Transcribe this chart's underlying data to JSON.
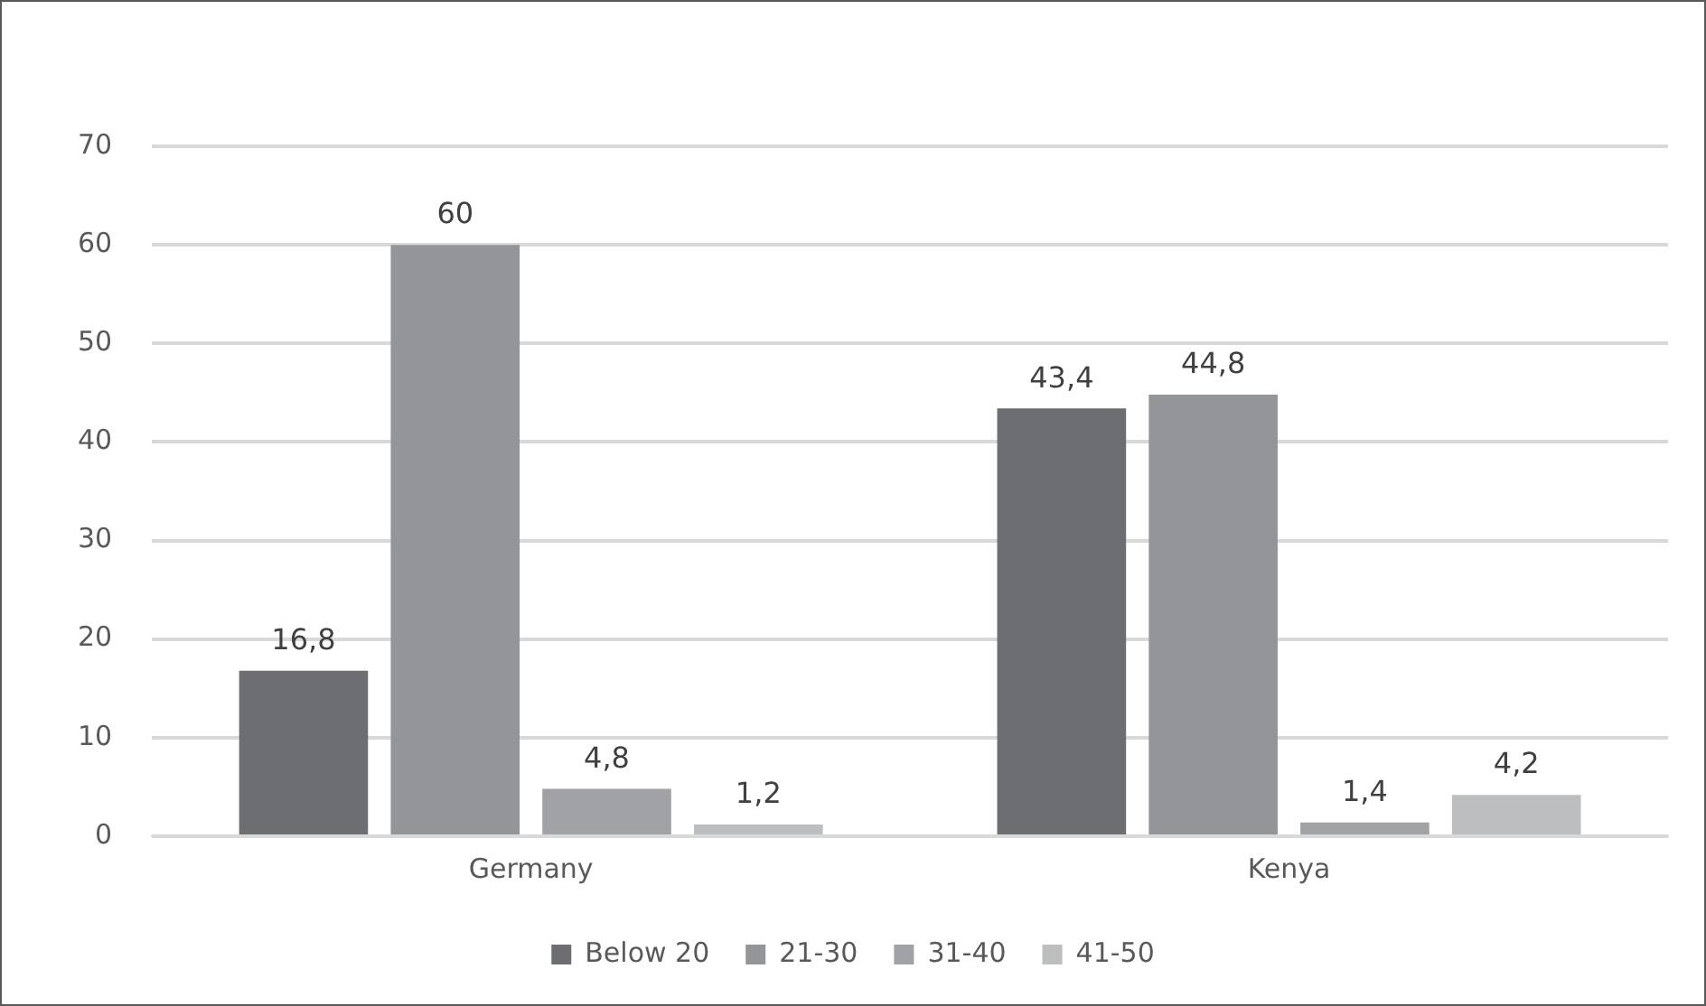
{
  "chart_data": {
    "type": "bar",
    "categories": [
      "Germany",
      "Kenya"
    ],
    "series": [
      {
        "name": "Below 20",
        "color": "#6d6e71",
        "values": [
          16.8,
          43.4
        ],
        "value_labels": [
          "16,8",
          "43,4"
        ]
      },
      {
        "name": "21-30",
        "color": "#939598",
        "values": [
          60,
          44.8
        ],
        "value_labels": [
          "60",
          "44,8"
        ]
      },
      {
        "name": "31-40",
        "color": "#a0a2a5",
        "values": [
          4.8,
          1.4
        ],
        "value_labels": [
          "4,8",
          "1,4"
        ]
      },
      {
        "name": "41-50",
        "color": "#bcbec0",
        "values": [
          1.2,
          4.2
        ],
        "value_labels": [
          "1,2",
          "4,2"
        ]
      }
    ],
    "ylim": [
      0,
      70
    ],
    "yticks": [
      0,
      10,
      20,
      30,
      40,
      50,
      60,
      70
    ],
    "grid": "y",
    "legend": "bottom"
  }
}
